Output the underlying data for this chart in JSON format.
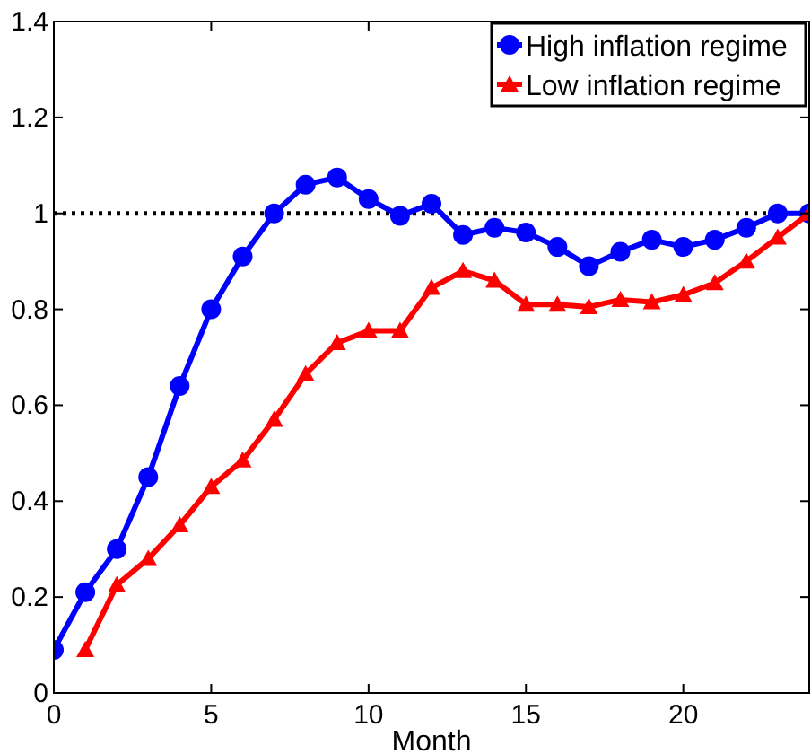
{
  "chart_data": {
    "type": "line",
    "xlabel": "Month",
    "x": [
      0,
      1,
      2,
      3,
      4,
      5,
      6,
      7,
      8,
      9,
      10,
      11,
      12,
      13,
      14,
      15,
      16,
      17,
      18,
      19,
      20,
      21,
      22,
      23,
      24
    ],
    "series": [
      {
        "name": "High inflation regime",
        "color": "#0000ff",
        "marker": "circle",
        "values": [
          0.09,
          0.21,
          0.3,
          0.45,
          0.64,
          0.8,
          0.91,
          1.0,
          1.06,
          1.075,
          1.03,
          0.995,
          1.02,
          0.955,
          0.97,
          0.96,
          0.93,
          0.89,
          0.92,
          0.945,
          0.93,
          0.945,
          0.97,
          1.0,
          1.0
        ]
      },
      {
        "name": "Low inflation regime",
        "color": "#ff0000",
        "marker": "triangle",
        "values": [
          null,
          0.09,
          0.225,
          0.28,
          0.35,
          0.43,
          0.485,
          0.57,
          0.665,
          0.73,
          0.755,
          0.755,
          0.845,
          0.88,
          0.86,
          0.81,
          0.81,
          0.805,
          0.82,
          0.815,
          0.83,
          0.855,
          0.9,
          0.95,
          1.0
        ]
      }
    ],
    "xlim": [
      0,
      24
    ],
    "xticks": [
      0,
      5,
      10,
      15,
      20
    ],
    "ylim": [
      0,
      1.4
    ],
    "yticks": [
      0,
      0.2,
      0.4,
      0.6,
      0.8,
      1,
      1.2,
      1.4
    ],
    "ref_lines": [
      {
        "axis": "y",
        "value": 1,
        "color": "#000000",
        "line_style": "dotted"
      }
    ],
    "grid": false,
    "legend": "top right",
    "line_style": "solid"
  }
}
